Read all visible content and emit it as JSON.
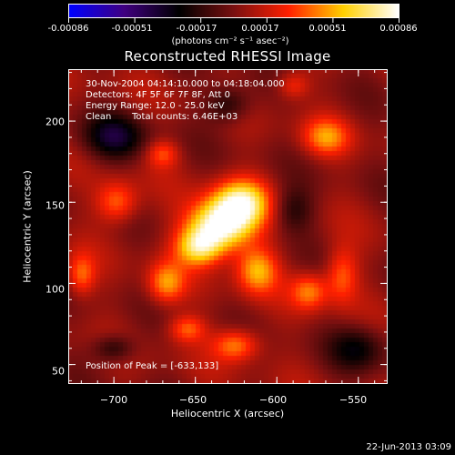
{
  "colorbar": {
    "ticks": [
      "-0.00086",
      "-0.00051",
      "-0.00017",
      "0.00017",
      "0.00051",
      "0.00086"
    ],
    "units": "(photons cm⁻² s⁻¹ asec⁻²)",
    "colors": [
      "#0000ff",
      "#400080",
      "#000000",
      "#7a1010",
      "#ff2000",
      "#ffd000",
      "#ffffff"
    ]
  },
  "chart_data": {
    "type": "heatmap",
    "title": "Reconstructed RHESSI Image",
    "xlabel": "Heliocentric X (arcsec)",
    "ylabel": "Heliocentric Y (arcsec)",
    "xlim": [
      -728,
      -532
    ],
    "ylim": [
      38,
      232
    ],
    "x_ticks": [
      -700,
      -650,
      -600,
      -550
    ],
    "x_tick_labels": [
      "−700",
      "−650",
      "−600",
      "−550"
    ],
    "y_ticks": [
      50,
      100,
      150,
      200
    ],
    "y_tick_labels": [
      "50",
      "100",
      "150",
      "200"
    ],
    "peak": [
      -633,
      133
    ],
    "blobs": [
      {
        "x": -635,
        "y": 135,
        "sx": 14,
        "sy": 11,
        "amp": 1.0
      },
      {
        "x": -622,
        "y": 150,
        "sx": 12,
        "sy": 10,
        "amp": 0.75
      },
      {
        "x": -648,
        "y": 122,
        "sx": 10,
        "sy": 8,
        "amp": 0.6
      },
      {
        "x": -612,
        "y": 108,
        "sx": 9,
        "sy": 10,
        "amp": 0.55
      },
      {
        "x": -668,
        "y": 100,
        "sx": 8,
        "sy": 9,
        "amp": 0.5
      },
      {
        "x": -580,
        "y": 95,
        "sx": 8,
        "sy": 8,
        "amp": 0.45
      },
      {
        "x": -560,
        "y": 105,
        "sx": 7,
        "sy": 12,
        "amp": 0.4
      },
      {
        "x": -698,
        "y": 150,
        "sx": 9,
        "sy": 9,
        "amp": 0.45
      },
      {
        "x": -720,
        "y": 105,
        "sx": 6,
        "sy": 9,
        "amp": 0.4
      },
      {
        "x": -570,
        "y": 190,
        "sx": 10,
        "sy": 8,
        "amp": 0.45
      },
      {
        "x": -590,
        "y": 222,
        "sx": 7,
        "sy": 6,
        "amp": 0.3
      },
      {
        "x": -625,
        "y": 62,
        "sx": 10,
        "sy": 7,
        "amp": 0.5
      },
      {
        "x": -655,
        "y": 72,
        "sx": 8,
        "sy": 6,
        "amp": 0.4
      },
      {
        "x": -670,
        "y": 180,
        "sx": 7,
        "sy": 6,
        "amp": 0.35
      },
      {
        "x": -700,
        "y": 60,
        "sx": 9,
        "sy": 6,
        "amp": -0.35
      },
      {
        "x": -700,
        "y": 190,
        "sx": 14,
        "sy": 10,
        "amp": -0.45
      },
      {
        "x": -550,
        "y": 60,
        "sx": 12,
        "sy": 10,
        "amp": -0.35
      },
      {
        "x": -590,
        "y": 145,
        "sx": 9,
        "sy": 10,
        "amp": -0.3
      },
      {
        "x": -630,
        "y": 210,
        "sx": 10,
        "sy": 8,
        "amp": -0.35
      }
    ]
  },
  "annotations": {
    "time_range": "30-Nov-2004 04:14:10.000 to 04:18:04.000",
    "detectors": "Detectors: 4F 5F 6F 7F 8F, Att 0",
    "energy": "Energy Range: 12.0 - 25.0 keV",
    "clean": "Clean",
    "total_counts": "Total counts: 6.46E+03",
    "peak_position": "Position of Peak = [-633,133]"
  },
  "date_stamp": "22-Jun-2013 03:09"
}
